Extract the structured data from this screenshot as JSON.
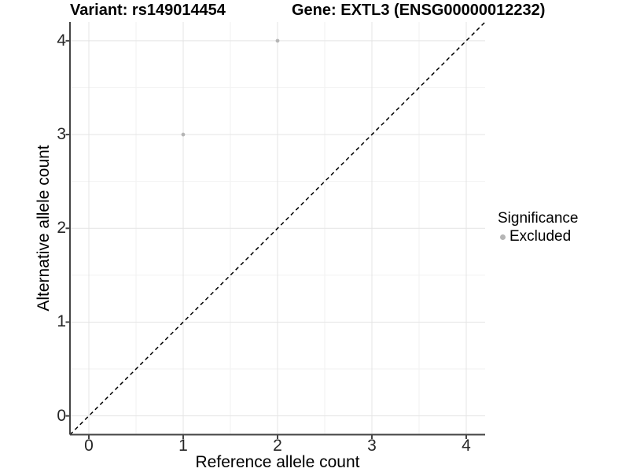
{
  "titles": {
    "left": "Variant: rs149014454",
    "right": "Gene: EXTL3 (ENSG00000012232)"
  },
  "chart_data": {
    "type": "scatter",
    "title_left": "Variant: rs149014454",
    "title_right": "Gene: EXTL3 (ENSG00000012232)",
    "xlabel": "Reference allele count",
    "ylabel": "Alternative allele count",
    "xlim": [
      -0.2,
      4.2
    ],
    "ylim": [
      -0.2,
      4.2
    ],
    "x_ticks": [
      0,
      1,
      2,
      3,
      4
    ],
    "y_ticks": [
      0,
      1,
      2,
      3,
      4
    ],
    "x_minor_ticks": [
      0.5,
      1.5,
      2.5,
      3.5
    ],
    "y_minor_ticks": [
      0.5,
      1.5,
      2.5,
      3.5
    ],
    "grid": "major-and-minor",
    "legend_position": "right",
    "series": [
      {
        "name": "Excluded",
        "color": "#b5b5b5",
        "points": [
          {
            "x": 1,
            "y": 3
          },
          {
            "x": 2,
            "y": 4
          }
        ]
      }
    ],
    "reference_line": {
      "type": "identity y=x",
      "style": "dashed",
      "color": "#000000"
    }
  },
  "legend": {
    "title": "Significance",
    "items": [
      {
        "label": "Excluded",
        "color": "#b5b5b5"
      }
    ]
  },
  "colors": {
    "background": "#ffffff",
    "axis_line": "#444444",
    "tick_label": "#262626",
    "grid_major": "#e4e4e4",
    "grid_minor": "#f2f2f2",
    "point": "#b5b5b5",
    "dashed_line": "#000000"
  }
}
